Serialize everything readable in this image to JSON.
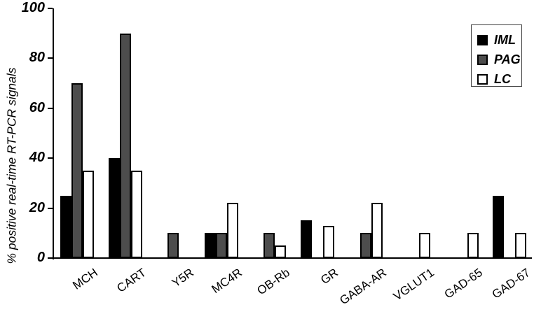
{
  "chart_data": {
    "type": "bar",
    "title": "",
    "ylabel": "% positive real-time RT-PCR signals",
    "xlabel": "",
    "ylim": [
      0,
      100
    ],
    "yticks": [
      0,
      20,
      40,
      60,
      80,
      100
    ],
    "grid": false,
    "legend_position": "upper right",
    "categories": [
      "MCH",
      "CART",
      "Y5R",
      "MC4R",
      "OB-Rb",
      "GR",
      "GABA-AR",
      "VGLUT1",
      "GAD-65",
      "GAD-67"
    ],
    "series": [
      {
        "name": "IML",
        "color": "#000000",
        "values": [
          25,
          40,
          0,
          10,
          0,
          15,
          0,
          0,
          0,
          25
        ]
      },
      {
        "name": "PAG",
        "color": "#4d4d4d",
        "values": [
          70,
          90,
          10,
          10,
          10,
          0,
          10,
          0,
          0,
          0
        ]
      },
      {
        "name": "LC",
        "color": "#ffffff",
        "values": [
          35,
          35,
          0,
          22,
          5,
          13,
          22,
          10,
          10,
          10
        ]
      }
    ]
  },
  "colors": {
    "axis": "#000000",
    "background": "#ffffff",
    "legend_border": "#3f3f3f"
  }
}
